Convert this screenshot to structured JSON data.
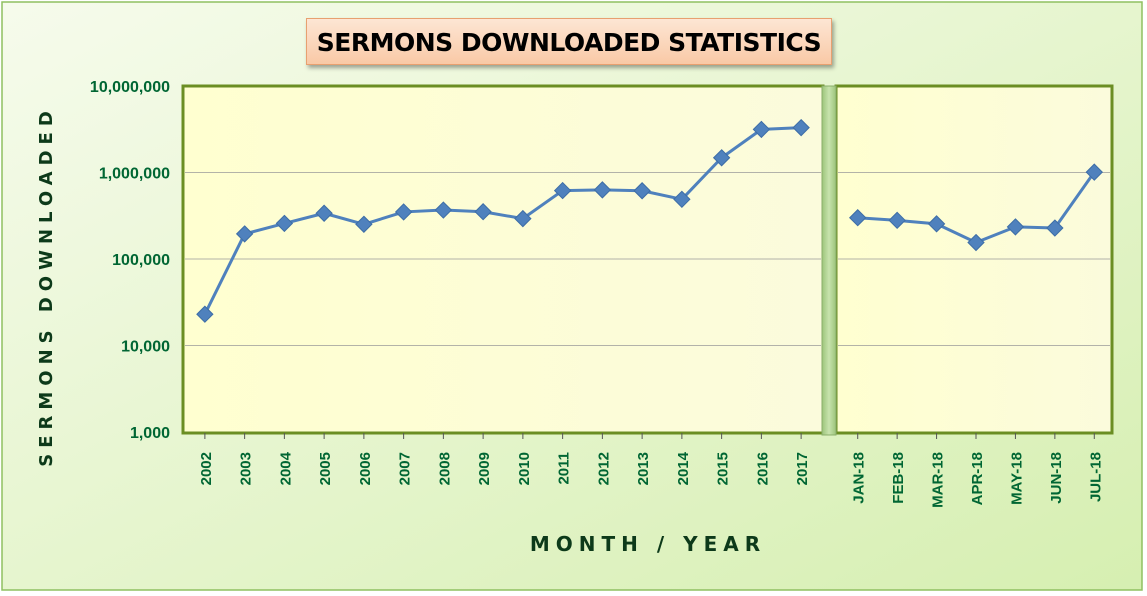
{
  "chart_data": {
    "type": "line",
    "title": "SERMONS DOWNLOADED STATISTICS",
    "xlabel": "MONTH / YEAR",
    "ylabel": "SERMONS DOWNLOADED",
    "yscale": "log",
    "ylim": [
      1000,
      10000000
    ],
    "yticks": [
      "1,000",
      "10,000",
      "100,000",
      "1,000,000",
      "10,000,000"
    ],
    "grid": true,
    "legend": "none",
    "series": [
      {
        "categories": [
          "2002",
          "2003",
          "2004",
          "2005",
          "2006",
          "2007",
          "2008",
          "2009",
          "2010",
          "2011",
          "2012",
          "2013",
          "2014",
          "2015",
          "2016",
          "2017"
        ],
        "values": [
          23000,
          195000,
          258000,
          338000,
          252000,
          350000,
          368000,
          352000,
          293000,
          618000,
          630000,
          615000,
          490000,
          1480000,
          3150000,
          3300000
        ]
      },
      {
        "categories": [
          "JAN-18",
          "FEB-18",
          "MAR-18",
          "APR-18",
          "MAY-18",
          "JUN-18",
          "JUL-18"
        ],
        "values": [
          300000,
          280000,
          255000,
          155000,
          235000,
          228000,
          1010000
        ]
      }
    ],
    "colors": {
      "line": "#4f81bd",
      "marker": "#4f81bd",
      "tick_text": "#006633",
      "axis_title": "#0d3a1a",
      "plot_bg": "#ffffcc",
      "outer_bg": "#e3f3c6"
    }
  }
}
